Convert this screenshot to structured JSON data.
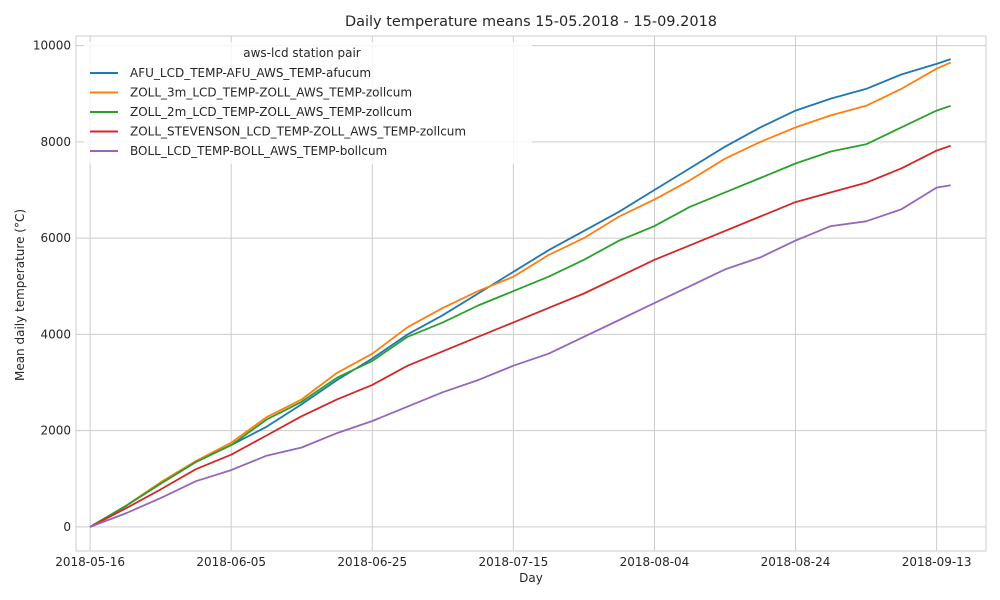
{
  "chart_data": {
    "type": "line",
    "title": "Daily temperature means 15-05.2018 - 15-09.2018",
    "xlabel": "Day",
    "ylabel": "Mean daily temperature (°C)",
    "x_range": [
      "2018-05-14",
      "2018-09-20"
    ],
    "ylim": [
      -500,
      10200
    ],
    "x_ticks": [
      "2018-05-16",
      "2018-06-05",
      "2018-06-25",
      "2018-07-15",
      "2018-08-04",
      "2018-08-24",
      "2018-09-13"
    ],
    "y_ticks": [
      0,
      2000,
      4000,
      6000,
      8000,
      10000
    ],
    "grid": true,
    "legend": {
      "title": "aws-lcd station pair",
      "placement": "upper-left"
    },
    "dates": [
      "2018-05-16",
      "2018-05-21",
      "2018-05-26",
      "2018-05-31",
      "2018-06-05",
      "2018-06-10",
      "2018-06-15",
      "2018-06-20",
      "2018-06-25",
      "2018-06-30",
      "2018-07-05",
      "2018-07-10",
      "2018-07-15",
      "2018-07-20",
      "2018-07-25",
      "2018-07-30",
      "2018-08-04",
      "2018-08-09",
      "2018-08-14",
      "2018-08-19",
      "2018-08-24",
      "2018-08-29",
      "2018-09-03",
      "2018-09-08",
      "2018-09-13",
      "2018-09-15"
    ],
    "series": [
      {
        "name": "AFU_LCD_TEMP-AFU_AWS_TEMP-afucum",
        "color": "#1f77b4",
        "values": [
          0,
          430,
          900,
          1350,
          1700,
          2080,
          2550,
          3050,
          3500,
          4000,
          4400,
          4850,
          5300,
          5750,
          6150,
          6550,
          7000,
          7450,
          7900,
          8300,
          8650,
          8900,
          9100,
          9400,
          9620,
          9720
        ]
      },
      {
        "name": "ZOLL_3m_LCD_TEMP-ZOLL_AWS_TEMP-zollcum",
        "color": "#ff7f0e",
        "values": [
          0,
          430,
          930,
          1370,
          1750,
          2280,
          2650,
          3200,
          3600,
          4150,
          4550,
          4900,
          5200,
          5650,
          6000,
          6450,
          6800,
          7200,
          7650,
          8000,
          8300,
          8550,
          8750,
          9100,
          9520,
          9650
        ]
      },
      {
        "name": "ZOLL_2m_LCD_TEMP-ZOLL_AWS_TEMP-zollcum",
        "color": "#2ca02c",
        "values": [
          0,
          430,
          900,
          1350,
          1700,
          2230,
          2600,
          3100,
          3450,
          3950,
          4250,
          4600,
          4900,
          5200,
          5550,
          5950,
          6250,
          6650,
          6950,
          7250,
          7550,
          7800,
          7950,
          8300,
          8650,
          8750
        ]
      },
      {
        "name": "ZOLL_STEVENSON_LCD_TEMP-ZOLL_AWS_TEMP-zollcum",
        "color": "#d62728",
        "values": [
          0,
          380,
          780,
          1200,
          1500,
          1900,
          2300,
          2650,
          2950,
          3350,
          3650,
          3950,
          4250,
          4550,
          4850,
          5200,
          5550,
          5850,
          6150,
          6450,
          6750,
          6950,
          7150,
          7450,
          7820,
          7920
        ]
      },
      {
        "name": "BOLL_LCD_TEMP-BOLL_AWS_TEMP-bollcum",
        "color": "#9467bd",
        "values": [
          0,
          280,
          600,
          950,
          1180,
          1480,
          1650,
          1950,
          2200,
          2500,
          2800,
          3050,
          3350,
          3600,
          3950,
          4300,
          4650,
          5000,
          5350,
          5600,
          5950,
          6250,
          6350,
          6600,
          7050,
          7100
        ]
      }
    ]
  }
}
